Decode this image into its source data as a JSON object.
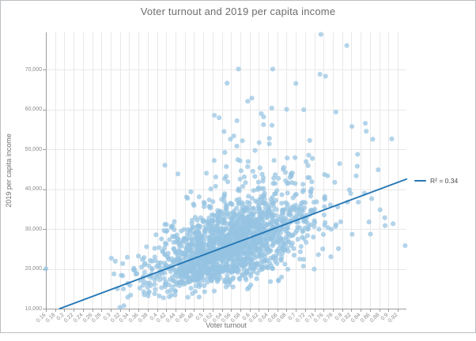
{
  "window": {
    "background": "#ffffff",
    "frame_border_color": "#bcbfc2"
  },
  "chart_data": {
    "type": "scatter",
    "title": "Voter turnout and 2019 per capita income",
    "xlabel": "Voter turnout",
    "ylabel": "2019 per capita income",
    "xlim": [
      0.16,
      0.939
    ],
    "ylim": [
      10000,
      79800
    ],
    "grid": true,
    "x_tick_values": [
      0.16,
      0.18,
      0.2,
      0.22,
      0.24,
      0.26,
      0.28,
      0.3,
      0.32,
      0.34,
      0.36,
      0.38,
      0.4,
      0.42,
      0.44,
      0.46,
      0.48,
      0.5,
      0.52,
      0.54,
      0.56,
      0.58,
      0.6,
      0.62,
      0.64,
      0.66,
      0.68,
      0.7,
      0.72,
      0.74,
      0.76,
      0.78,
      0.8,
      0.82,
      0.84,
      0.86,
      0.88,
      0.9,
      0.92
    ],
    "x_tick_labels": [
      "0.16",
      "0.18",
      "0.2",
      "0.22",
      "0.24",
      "0.26",
      "0.28",
      "0.3",
      "0.32",
      "0.34",
      "0.36",
      "0.38",
      "0.4",
      "0.42",
      "0.44",
      "0.46",
      "0.48",
      "0.5",
      "0.52",
      "0.54",
      "0.56",
      "0.58",
      "0.6",
      "0.62",
      "0.64",
      "0.66",
      "0.68",
      "0.7",
      "0.72",
      "0.74",
      "0.76",
      "0.78",
      "0.8",
      "0.82",
      "0.84",
      "0.86",
      "0.88",
      "0.9",
      "0.92"
    ],
    "y_tick_values": [
      10000,
      20000,
      30000,
      40000,
      50000,
      60000,
      70000
    ],
    "y_tick_labels": [
      "10,000",
      "20,000",
      "30,000",
      "40,000",
      "50,000",
      "60,000",
      "70,000"
    ],
    "legend": {
      "label": "R² = 0.34",
      "position": "right of trendline end"
    },
    "trendline": {
      "r_squared": 0.34,
      "x_start": 0.19,
      "y_start": 10000,
      "x_end": 0.939,
      "y_end": 42500,
      "color": "#2577b5",
      "width": 2
    },
    "points": {
      "style": {
        "color_rgb": [
          150,
          195,
          226
        ],
        "opacity": 0.72,
        "radius": 3.1
      },
      "approx_count": 1850,
      "generator": {
        "seed": 20190816,
        "count": 1850,
        "x_mixture": [
          {
            "weight": 0.88,
            "mean": 0.545,
            "sd": 0.082
          },
          {
            "weight": 0.12,
            "mean": 0.665,
            "sd": 0.105
          }
        ],
        "x_range": [
          0.3,
          0.935
        ],
        "trend_slope": 42700,
        "trend_intercept": 1890,
        "log_noise_sd": 0.2,
        "high_outlier_prob": 0.02,
        "high_outlier_log_range": [
          0.28,
          0.8
        ],
        "y_range": [
          10400,
          78800
        ]
      },
      "notable_points": [
        [
          0.16,
          20000
        ],
        [
          0.31,
          21900
        ],
        [
          0.32,
          10300
        ],
        [
          0.326,
          21300
        ],
        [
          0.336,
          22900
        ],
        [
          0.352,
          19600
        ],
        [
          0.524,
          58500
        ],
        [
          0.576,
          70100
        ],
        [
          0.605,
          62800
        ],
        [
          0.648,
          60300
        ],
        [
          0.65,
          70100
        ],
        [
          0.68,
          60000
        ],
        [
          0.7,
          66500
        ],
        [
          0.717,
          59900
        ],
        [
          0.752,
          68800
        ],
        [
          0.754,
          78800
        ],
        [
          0.764,
          68300
        ],
        [
          0.81,
          76000
        ],
        [
          0.821,
          55700
        ],
        [
          0.85,
          56500
        ],
        [
          0.852,
          54500
        ],
        [
          0.866,
          52500
        ],
        [
          0.882,
          34800
        ],
        [
          0.892,
          32800
        ],
        [
          0.936,
          25800
        ]
      ]
    }
  }
}
